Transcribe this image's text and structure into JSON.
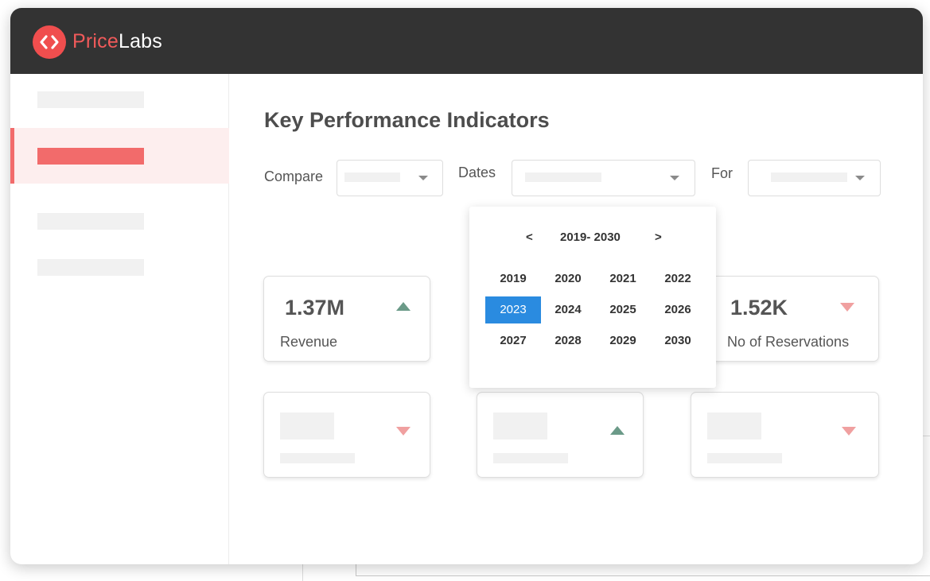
{
  "app": {
    "brand_first": "Price",
    "brand_second": "Labs",
    "brand_color": "#f04e4e",
    "titlebar_color": "#333333"
  },
  "sidebar": {
    "items": [
      {
        "state": "placeholder"
      },
      {
        "state": "active",
        "accent": "#f26b6b"
      },
      {
        "state": "placeholder"
      },
      {
        "state": "placeholder"
      }
    ]
  },
  "main": {
    "title": "Key Performance Indicators",
    "filters": {
      "compare_label": "Compare",
      "dates_label": "Dates",
      "for_label": "For"
    },
    "date_picker": {
      "prev": "<",
      "next": ">",
      "range": "2019- 2030",
      "years": [
        "2019",
        "2020",
        "2021",
        "2022",
        "2023",
        "2024",
        "2025",
        "2026",
        "2027",
        "2028",
        "2029",
        "2030"
      ],
      "selected": "2023",
      "selected_color": "#2a8be0"
    },
    "kpi_cards": [
      {
        "value": "1.37M",
        "label": "Revenue",
        "trend": "up"
      },
      {
        "value": "1.52K",
        "label": "No of Reservations",
        "trend": "down"
      },
      {
        "trend": "down"
      },
      {
        "trend": "up"
      },
      {
        "trend": "down"
      }
    ],
    "trend_colors": {
      "up": "#6b9a88",
      "down": "#f0a0a0"
    }
  }
}
